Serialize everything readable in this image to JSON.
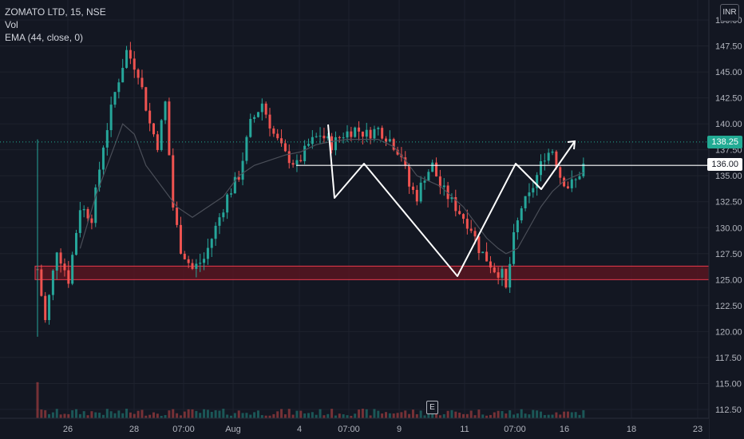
{
  "legend": {
    "symbol": "ZOMATO LTD, 15, NSE",
    "volume": "Vol",
    "ema": "EMA (44, close, 0)"
  },
  "currency": "INR",
  "colors": {
    "background": "#131722",
    "up": "#26a69a",
    "down": "#ef5350",
    "grid": "#1e222d",
    "zone_fill": "#5c1520",
    "zone_border": "#e8394b",
    "pattern_line": "#ffffff",
    "ema": "#4a4e58",
    "last_price_tag": "#22ab94"
  },
  "earnings_marker": "E",
  "chart_data": {
    "type": "candlestick",
    "title": "ZOMATO LTD, 15, NSE",
    "y_ticks": [
      "112.50",
      "115.00",
      "117.50",
      "120.00",
      "122.50",
      "125.00",
      "127.50",
      "130.00",
      "132.50",
      "135.00",
      "137.50",
      "140.00",
      "142.50",
      "145.00",
      "147.50",
      "150.00"
    ],
    "x_ticks": [
      "26",
      "28",
      "07:00",
      "Aug",
      "4",
      "07:00",
      "9",
      "11",
      "07:00",
      "16",
      "18",
      "23"
    ],
    "ylim": [
      111.5,
      152
    ],
    "last_price": "138.25",
    "horizontal_line_price": "136.00",
    "support_zone": [
      125.0,
      126.3
    ],
    "price_path": [
      [
        0,
        126
      ],
      [
        2,
        121
      ],
      [
        5,
        128
      ],
      [
        8,
        125
      ],
      [
        11,
        132
      ],
      [
        14,
        131
      ],
      [
        17,
        138
      ],
      [
        20,
        143
      ],
      [
        23,
        147
      ],
      [
        26,
        145
      ],
      [
        29,
        140
      ],
      [
        31,
        138
      ],
      [
        33,
        142
      ],
      [
        35,
        132
      ],
      [
        37,
        128
      ],
      [
        40,
        126
      ],
      [
        43,
        127
      ],
      [
        46,
        130
      ],
      [
        49,
        133
      ],
      [
        52,
        135
      ],
      [
        55,
        140
      ],
      [
        58,
        142
      ],
      [
        61,
        139
      ],
      [
        64,
        137
      ],
      [
        67,
        136
      ],
      [
        70,
        138
      ],
      [
        73,
        139
      ],
      [
        76,
        138
      ],
      [
        79,
        139
      ],
      [
        82,
        139.5
      ],
      [
        85,
        139
      ],
      [
        88,
        139.5
      ],
      [
        91,
        138.5
      ],
      [
        94,
        137
      ],
      [
        96,
        134
      ],
      [
        98,
        133
      ],
      [
        100,
        135
      ],
      [
        102,
        136
      ],
      [
        104,
        134
      ],
      [
        106,
        133
      ],
      [
        108,
        132
      ],
      [
        110,
        131
      ],
      [
        112,
        130
      ],
      [
        114,
        128
      ],
      [
        116,
        127
      ],
      [
        118,
        126
      ],
      [
        120,
        125.5
      ],
      [
        121,
        124
      ],
      [
        123,
        129
      ],
      [
        125,
        132
      ],
      [
        127,
        133
      ],
      [
        129,
        135
      ],
      [
        131,
        137
      ],
      [
        133,
        137.5
      ],
      [
        135,
        135
      ],
      [
        137,
        134
      ],
      [
        139,
        134.5
      ],
      [
        141,
        136
      ]
    ],
    "ema_path": [
      [
        11,
        128
      ],
      [
        15,
        133
      ],
      [
        19,
        137
      ],
      [
        22,
        140
      ],
      [
        25,
        139
      ],
      [
        28,
        136
      ],
      [
        32,
        134
      ],
      [
        36,
        132
      ],
      [
        40,
        131
      ],
      [
        44,
        132
      ],
      [
        48,
        133
      ],
      [
        52,
        135
      ],
      [
        56,
        136
      ],
      [
        60,
        136.5
      ],
      [
        64,
        137
      ],
      [
        68,
        137.3
      ],
      [
        72,
        138
      ],
      [
        76,
        138.3
      ],
      [
        80,
        138.5
      ],
      [
        84,
        138.5
      ],
      [
        88,
        138.5
      ],
      [
        92,
        137.8
      ],
      [
        95,
        136.5
      ],
      [
        98,
        135
      ],
      [
        101,
        134.5
      ],
      [
        104,
        134
      ],
      [
        107,
        133
      ],
      [
        110,
        132
      ],
      [
        113,
        130.5
      ],
      [
        116,
        129
      ],
      [
        119,
        128
      ],
      [
        121,
        127.5
      ],
      [
        124,
        128
      ],
      [
        127,
        130
      ],
      [
        130,
        132
      ],
      [
        133,
        133.5
      ],
      [
        136,
        134.5
      ],
      [
        139,
        135
      ],
      [
        141,
        135.3
      ]
    ],
    "pattern_path": [
      [
        411,
        156
      ],
      [
        419,
        248
      ],
      [
        456,
        205
      ],
      [
        573,
        346
      ],
      [
        646,
        205
      ],
      [
        678,
        237
      ],
      [
        720,
        177
      ]
    ]
  }
}
